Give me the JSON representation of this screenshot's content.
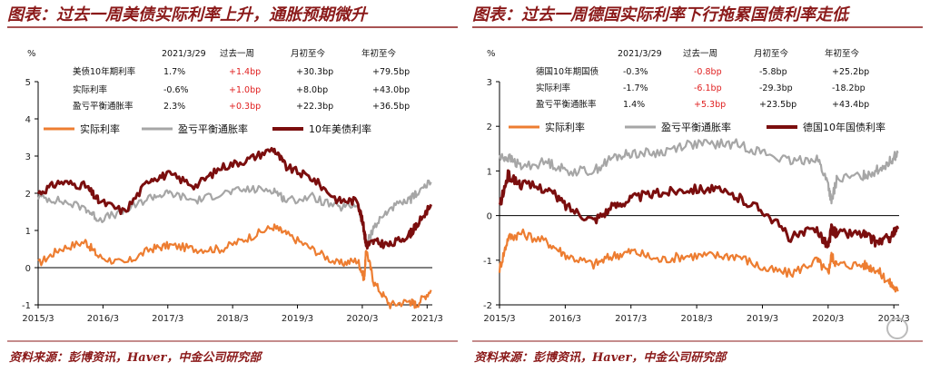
{
  "charts": [
    {
      "title": "图表：过去一周美债实际利率上升，通胀预期微升",
      "source": "资料来源：彭博资讯，Haver，中金公司研究部",
      "ylabel": "%",
      "table": {
        "headers": [
          "2021/3/29",
          "过去一周",
          "月初至今",
          "年初至今"
        ],
        "rows": [
          {
            "label": "美债10年期利率",
            "values": [
              "1.7%",
              "+1.4bp",
              "+30.3bp",
              "+79.5bp"
            ],
            "red": [
              false,
              true,
              false,
              false
            ]
          },
          {
            "label": "实际利率",
            "values": [
              "-0.6%",
              "+1.0bp",
              "+8.0bp",
              "+43.0bp"
            ],
            "red": [
              false,
              true,
              false,
              false
            ]
          },
          {
            "label": "盈亏平衡通胀率",
            "values": [
              "2.3%",
              "+0.3bp",
              "+22.3bp",
              "+36.5bp"
            ],
            "red": [
              false,
              true,
              false,
              false
            ]
          }
        ]
      },
      "legend": [
        "实际利率",
        "盈亏平衡通胀率",
        "10年美债利率"
      ],
      "colors": [
        "#ed7d31",
        "#a6a6a6",
        "#7b0e0e"
      ]
    },
    {
      "title": "图表：过去一周德国实际利率下行拖累国债利率走低",
      "source": "资料来源：彭博资讯，Haver，中金公司研究部",
      "ylabel": "%",
      "table": {
        "headers": [
          "2021/3/29",
          "过去一周",
          "月初至今",
          "年初至今"
        ],
        "rows": [
          {
            "label": "德国10年期国债",
            "values": [
              "-0.3%",
              "-0.8bp",
              "-5.8bp",
              "+25.2bp"
            ],
            "red": [
              false,
              true,
              false,
              false
            ]
          },
          {
            "label": "实际利率",
            "values": [
              "-1.7%",
              "-6.1bp",
              "-29.3bp",
              "-18.2bp"
            ],
            "red": [
              false,
              true,
              false,
              false
            ]
          },
          {
            "label": "盈亏平衡通胀率",
            "values": [
              "1.4%",
              "+5.3bp",
              "+23.5bp",
              "+43.4bp"
            ],
            "red": [
              false,
              true,
              false,
              false
            ]
          }
        ]
      },
      "legend": [
        "实际利率",
        "盈亏平衡通胀率",
        "德国10年国债利率"
      ],
      "colors": [
        "#ed7d31",
        "#a6a6a6",
        "#7b0e0e"
      ]
    }
  ],
  "chart_data": [
    {
      "type": "line",
      "title": "图表：过去一周美债实际利率上升，通胀预期微升",
      "ylabel": "%",
      "ylim": [
        -1,
        5
      ],
      "xlim": [
        2015.17,
        2021.25
      ],
      "yticks": [
        -1,
        0,
        1,
        2,
        3,
        4,
        5
      ],
      "xticks": [
        2015.17,
        2016.17,
        2017.17,
        2018.17,
        2019.17,
        2020.17,
        2021.17
      ],
      "xticklabels": [
        "2015/3",
        "2016/3",
        "2017/3",
        "2018/3",
        "2019/3",
        "2020/3",
        "2021/3"
      ],
      "series": [
        {
          "name": "实际利率",
          "color": "#ed7d31",
          "x": [
            2015.17,
            2015.5,
            2015.9,
            2016.1,
            2016.5,
            2016.9,
            2017.2,
            2017.6,
            2018.0,
            2018.4,
            2018.8,
            2019.0,
            2019.4,
            2019.8,
            2020.1,
            2020.2,
            2020.23,
            2020.35,
            2020.6,
            2020.9,
            2021.0,
            2021.23
          ],
          "y": [
            0.1,
            0.5,
            0.7,
            0.3,
            0.1,
            0.5,
            0.6,
            0.5,
            0.5,
            0.8,
            1.1,
            0.9,
            0.5,
            0.1,
            0.2,
            -0.3,
            0.5,
            -0.4,
            -1.0,
            -0.9,
            -1.0,
            -0.6
          ]
        },
        {
          "name": "盈亏平衡通胀率",
          "color": "#a6a6a6",
          "x": [
            2015.17,
            2015.5,
            2015.9,
            2016.1,
            2016.5,
            2016.9,
            2017.2,
            2017.6,
            2018.0,
            2018.4,
            2018.8,
            2019.0,
            2019.4,
            2019.8,
            2020.1,
            2020.2,
            2020.23,
            2020.35,
            2020.6,
            2020.9,
            2021.0,
            2021.23
          ],
          "y": [
            1.9,
            1.8,
            1.6,
            1.3,
            1.5,
            1.9,
            2.0,
            1.8,
            2.0,
            2.1,
            2.1,
            1.8,
            1.9,
            1.6,
            1.7,
            1.0,
            0.6,
            1.1,
            1.6,
            1.8,
            2.0,
            2.3
          ]
        },
        {
          "name": "10年美债利率",
          "color": "#7b0e0e",
          "x": [
            2015.17,
            2015.5,
            2015.9,
            2016.1,
            2016.5,
            2016.9,
            2017.2,
            2017.6,
            2018.0,
            2018.4,
            2018.8,
            2019.0,
            2019.4,
            2019.8,
            2020.1,
            2020.2,
            2020.23,
            2020.35,
            2020.6,
            2020.9,
            2021.0,
            2021.23
          ],
          "y": [
            2.0,
            2.3,
            2.2,
            1.8,
            1.5,
            2.4,
            2.5,
            2.2,
            2.7,
            2.9,
            3.2,
            2.7,
            2.4,
            1.8,
            1.8,
            1.0,
            0.6,
            0.7,
            0.6,
            0.9,
            1.1,
            1.7
          ]
        }
      ]
    },
    {
      "type": "line",
      "title": "图表：过去一周德国实际利率下行拖累国债利率走低",
      "ylabel": "%",
      "ylim": [
        -2,
        3
      ],
      "xlim": [
        2015.17,
        2021.25
      ],
      "yticks": [
        -2,
        -1,
        0,
        1,
        2,
        3
      ],
      "xticks": [
        2015.17,
        2016.17,
        2017.17,
        2018.17,
        2019.17,
        2020.17,
        2021.17
      ],
      "xticklabels": [
        "2015/3",
        "2016/3",
        "2017/3",
        "2018/3",
        "2019/3",
        "2020/3",
        "2021/3"
      ],
      "series": [
        {
          "name": "实际利率",
          "color": "#ed7d31",
          "x": [
            2015.17,
            2015.3,
            2015.5,
            2015.9,
            2016.2,
            2016.6,
            2016.9,
            2017.2,
            2017.6,
            2018.0,
            2018.4,
            2018.8,
            2019.2,
            2019.6,
            2020.0,
            2020.17,
            2020.22,
            2020.3,
            2020.7,
            2020.9,
            2021.1,
            2021.23
          ],
          "y": [
            -1.2,
            -0.5,
            -0.4,
            -0.6,
            -0.9,
            -1.1,
            -0.9,
            -0.8,
            -1.0,
            -0.9,
            -0.9,
            -0.9,
            -1.2,
            -1.3,
            -1.0,
            -1.3,
            -0.9,
            -1.1,
            -1.1,
            -1.2,
            -1.5,
            -1.7
          ]
        },
        {
          "name": "盈亏平衡通胀率",
          "color": "#a6a6a6",
          "x": [
            2015.17,
            2015.3,
            2015.5,
            2015.9,
            2016.2,
            2016.6,
            2016.9,
            2017.2,
            2017.6,
            2018.0,
            2018.4,
            2018.8,
            2019.2,
            2019.6,
            2020.0,
            2020.17,
            2020.22,
            2020.3,
            2020.7,
            2020.9,
            2021.1,
            2021.23
          ],
          "y": [
            1.3,
            1.3,
            1.1,
            1.2,
            1.0,
            1.0,
            1.3,
            1.4,
            1.4,
            1.6,
            1.6,
            1.6,
            1.4,
            1.2,
            1.3,
            0.7,
            0.3,
            0.8,
            0.9,
            1.0,
            1.2,
            1.4
          ]
        },
        {
          "name": "德国10年国债利率",
          "color": "#7b0e0e",
          "x": [
            2015.17,
            2015.3,
            2015.5,
            2015.9,
            2016.2,
            2016.6,
            2016.9,
            2017.2,
            2017.6,
            2018.0,
            2018.4,
            2018.8,
            2019.2,
            2019.6,
            2020.0,
            2020.17,
            2020.22,
            2020.3,
            2020.7,
            2020.9,
            2021.1,
            2021.23
          ],
          "y": [
            0.2,
            0.9,
            0.7,
            0.6,
            0.2,
            -0.1,
            0.2,
            0.4,
            0.5,
            0.6,
            0.6,
            0.4,
            0.1,
            -0.5,
            -0.3,
            -0.7,
            -0.3,
            -0.4,
            -0.4,
            -0.6,
            -0.5,
            -0.3
          ]
        }
      ]
    }
  ]
}
